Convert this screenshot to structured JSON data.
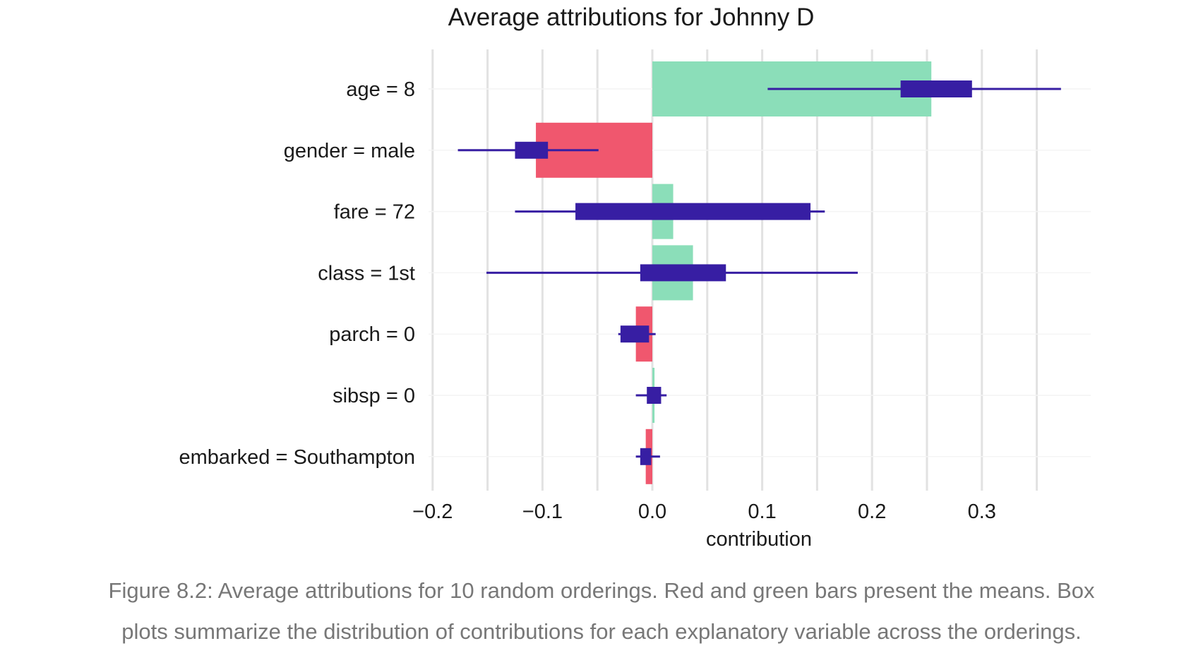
{
  "chart_data": {
    "type": "bar",
    "title": "Average attributions for Johnny D",
    "xlabel": "contribution",
    "ylabel": "",
    "xlim": [
      -0.2,
      0.4
    ],
    "xticks": [
      -0.2,
      -0.1,
      0.0,
      0.1,
      0.2,
      0.3
    ],
    "xtick_labels": [
      "−0.2",
      "−0.1",
      "0.0",
      "0.1",
      "0.2",
      "0.3"
    ],
    "grid": true,
    "orientation": "horizontal",
    "categories": [
      "age = 8",
      "gender = male",
      "fare = 72",
      "class = 1st",
      "parch = 0",
      "sibsp = 0",
      "embarked = Southampton"
    ],
    "mean_contributions": [
      0.254,
      -0.106,
      0.019,
      0.037,
      -0.015,
      0.002,
      -0.006
    ],
    "boxplots": [
      {
        "whisker_low": 0.105,
        "q1": 0.226,
        "q3": 0.291,
        "whisker_high": 0.372
      },
      {
        "whisker_low": -0.177,
        "q1": -0.125,
        "q3": -0.095,
        "whisker_high": -0.049
      },
      {
        "whisker_low": -0.125,
        "q1": -0.07,
        "q3": 0.144,
        "whisker_high": 0.157
      },
      {
        "whisker_low": -0.151,
        "q1": -0.011,
        "q3": 0.067,
        "whisker_high": 0.187
      },
      {
        "whisker_low": -0.031,
        "q1": -0.029,
        "q3": -0.003,
        "whisker_high": 0.003
      },
      {
        "whisker_low": -0.015,
        "q1": -0.005,
        "q3": 0.008,
        "whisker_high": 0.013
      },
      {
        "whisker_low": -0.015,
        "q1": -0.011,
        "q3": -0.001,
        "whisker_high": 0.007
      }
    ],
    "colors": {
      "positive": "#8bdeb9",
      "negative": "#f0576e",
      "boxplot": "#371ea3",
      "grid": "#e2e2e2"
    }
  },
  "caption": {
    "line1": "Figure 8.2: Average attributions for 10 random orderings. Red and green bars present the means. Box",
    "line2": "plots summarize the distribution of contributions for each explanatory variable across the orderings."
  }
}
